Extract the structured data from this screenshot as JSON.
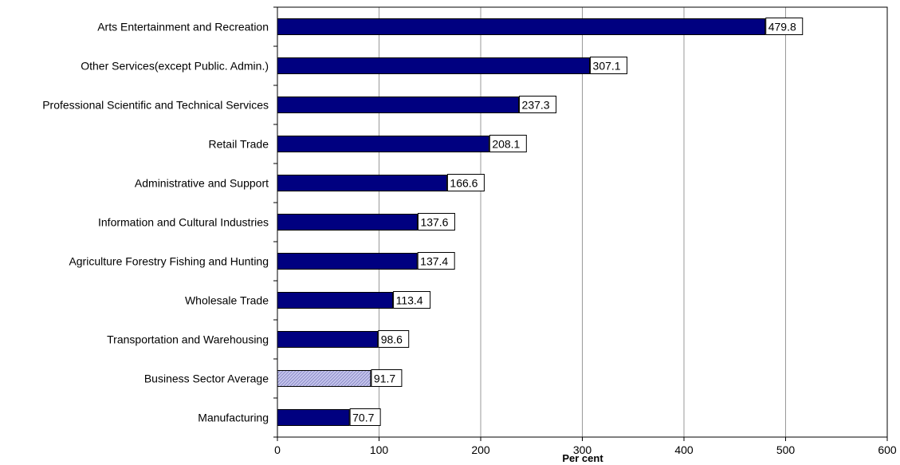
{
  "chart_data": {
    "type": "bar",
    "orientation": "horizontal",
    "categories": [
      "Arts Entertainment and Recreation",
      "Other Services(except Public. Admin.)",
      "Professional Scientific and Technical Services",
      "Retail Trade",
      "Administrative and Support",
      "Information and Cultural Industries",
      "Agriculture Forestry Fishing and Hunting",
      "Wholesale Trade",
      "Transportation and Warehousing",
      "Business Sector Average",
      "Manufacturing"
    ],
    "values": [
      479.8,
      307.1,
      237.3,
      208.1,
      166.6,
      137.6,
      137.4,
      113.4,
      98.6,
      91.7,
      70.7
    ],
    "value_labels": [
      "479.8",
      "307.1",
      "237.3",
      "208.1",
      "166.6",
      "137.6",
      "137.4",
      "113.4",
      "98.6",
      "91.7",
      "70.7"
    ],
    "highlight": "Business Sector Average",
    "xlabel": "Per cent",
    "xlim": [
      0,
      600
    ],
    "xticks": [
      0,
      100,
      200,
      300,
      400,
      500,
      600
    ],
    "xtick_labels": [
      "0",
      "100",
      "200",
      "300",
      "400",
      "500",
      "600"
    ],
    "grid": "vertical",
    "colors": {
      "bar": "#000080",
      "highlight_bar": "#c8c8ee",
      "highlight_hatch": "#8c8cc8",
      "gridline": "#999999",
      "axis": "#000000"
    }
  }
}
